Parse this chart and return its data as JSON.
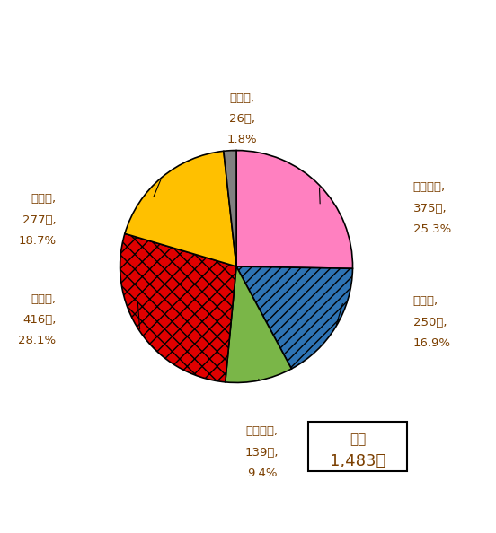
{
  "labels": [
    "日本国籍",
    "米国籍",
    "欧州国籍",
    "中国籍",
    "韓国籍",
    "その他"
  ],
  "values": [
    375,
    250,
    139,
    416,
    277,
    26
  ],
  "percentages": [
    "25.3%",
    "16.9%",
    "9.4%",
    "28.1%",
    "18.7%",
    "1.8%"
  ],
  "counts": [
    "375件,",
    "250件,",
    "139件,",
    "416件,",
    "277件,",
    "26件,"
  ],
  "colors": [
    "#FF80C0",
    "#2E74B5",
    "#7AB648",
    "#E00000",
    "#FFC000",
    "#808080"
  ],
  "hatch": [
    "",
    "///",
    "",
    "xxx",
    "",
    ""
  ],
  "total_label": "合計",
  "total_value": "1,483件",
  "label_color": "#7B3F00",
  "startangle": 90,
  "background": "#ffffff"
}
